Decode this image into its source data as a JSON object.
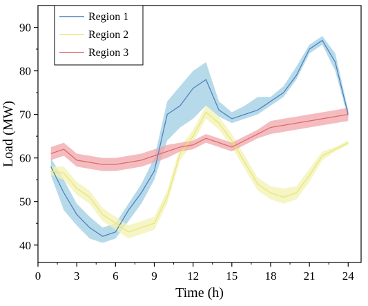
{
  "chart_data": {
    "type": "line",
    "xlabel": "Time (h)",
    "ylabel": "Load (MW)",
    "xlim": [
      0,
      25
    ],
    "ylim": [
      36,
      95
    ],
    "xticks": [
      "0",
      "3",
      "6",
      "9",
      "12",
      "15",
      "18",
      "21",
      "24"
    ],
    "yticks": [
      "40",
      "50",
      "60",
      "70",
      "80",
      "90"
    ],
    "legend_position": "top-left",
    "grid": false,
    "x": [
      1,
      2,
      3,
      4,
      5,
      6,
      7,
      8,
      9,
      10,
      11,
      12,
      13,
      14,
      15,
      16,
      17,
      18,
      19,
      20,
      21,
      22,
      23,
      24
    ],
    "series": [
      {
        "name": "Region 1",
        "color": "#4f81bd",
        "band_color": "#9dcde3",
        "values": [
          58,
          52,
          47,
          44,
          42,
          43,
          48,
          52,
          57,
          70,
          72,
          76,
          78,
          71,
          69,
          70,
          71,
          73,
          75,
          79,
          85,
          87,
          82,
          70
        ],
        "lower": [
          56,
          48,
          44.5,
          41.5,
          40.5,
          41.5,
          45.5,
          49.5,
          55,
          64,
          67,
          69,
          72,
          69.5,
          68,
          69,
          70,
          72,
          74,
          78,
          84,
          86,
          80,
          69
        ],
        "upper": [
          60,
          55,
          49.5,
          46.5,
          44,
          45,
          49.5,
          54,
          60,
          73,
          76.5,
          80,
          82,
          73,
          70.5,
          72,
          74,
          74,
          76.5,
          81,
          86,
          88,
          84,
          71
        ]
      },
      {
        "name": "Region 2",
        "color": "#e8e67a",
        "band_color": "#f3f2b2",
        "values": [
          57,
          56.5,
          53,
          51,
          47,
          45,
          43,
          44,
          45,
          51,
          61,
          65,
          70.5,
          68,
          64,
          59,
          54,
          52,
          51,
          52,
          56,
          60.5,
          62,
          63.5
        ],
        "lower": [
          56,
          55,
          51.5,
          49.5,
          45.5,
          43.5,
          41.5,
          42.5,
          43.5,
          49.5,
          59.5,
          63.5,
          69,
          66.5,
          62.5,
          57.5,
          52.5,
          50.5,
          49.5,
          50.5,
          54.5,
          59.5,
          61.5,
          63
        ],
        "upper": [
          58,
          58,
          54.5,
          52.5,
          48.5,
          46.5,
          44.5,
          45.5,
          46.5,
          52.5,
          62.5,
          66.5,
          72,
          69.5,
          65.5,
          60.5,
          55.5,
          53.5,
          53,
          53.5,
          57.5,
          61.5,
          62.5,
          64
        ]
      },
      {
        "name": "Region 3",
        "color": "#d96b6b",
        "band_color": "#f2a5aa",
        "values": [
          61,
          62,
          59.5,
          59,
          58.5,
          58.5,
          59,
          59.5,
          60.5,
          61.5,
          62.5,
          63,
          64.5,
          63.5,
          62.5,
          64,
          65.5,
          67,
          67.5,
          68,
          68.5,
          69,
          69.5,
          70
        ],
        "lower": [
          59.5,
          60.5,
          58,
          57.5,
          57,
          57,
          57.5,
          58,
          59,
          60,
          61.5,
          62,
          63.5,
          62.5,
          61.5,
          63,
          64.5,
          65.5,
          66,
          66.5,
          67,
          67.5,
          68,
          68.5
        ],
        "upper": [
          62.5,
          63.5,
          61,
          60.5,
          60,
          60,
          60.5,
          61,
          62,
          63,
          63.5,
          64,
          65.5,
          64.5,
          63.5,
          65,
          66.5,
          68.5,
          69,
          69.5,
          70,
          70.5,
          71,
          71.5
        ]
      }
    ]
  }
}
